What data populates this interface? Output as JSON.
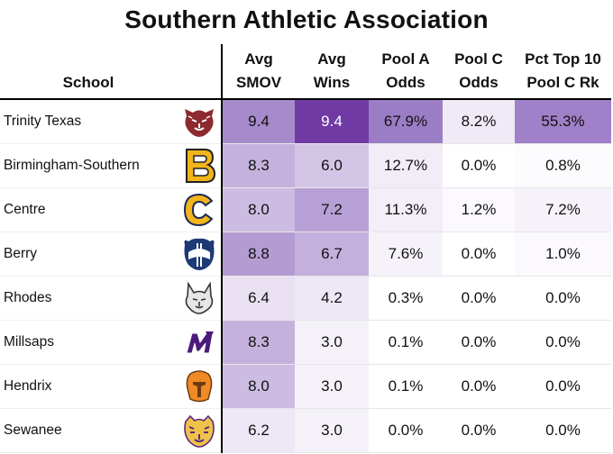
{
  "title": "Southern Athletic Association",
  "headers": {
    "school": "School",
    "smov": [
      "Avg",
      "SMOV"
    ],
    "wins": [
      "Avg",
      "Wins"
    ],
    "poola": [
      "Pool A",
      "Odds"
    ],
    "poolc": [
      "Pool C",
      "Odds"
    ],
    "pct": [
      "Pct Top 10",
      "Pool C Rk"
    ]
  },
  "rows": [
    {
      "school": "Trinity Texas",
      "logo": "tiger-head-logo",
      "smov": "9.4",
      "wins": "9.4",
      "poola": "67.9%",
      "poolc": "8.2%",
      "pct": "55.3%"
    },
    {
      "school": "Birmingham-Southern",
      "logo": "letter-b-logo",
      "smov": "8.3",
      "wins": "6.0",
      "poola": "12.7%",
      "poolc": "0.0%",
      "pct": "0.8%"
    },
    {
      "school": "Centre",
      "logo": "letter-c-logo",
      "smov": "8.0",
      "wins": "7.2",
      "poola": "11.3%",
      "poolc": "1.2%",
      "pct": "7.2%"
    },
    {
      "school": "Berry",
      "logo": "viking-helmet-logo",
      "smov": "8.8",
      "wins": "6.7",
      "poola": "7.6%",
      "poolc": "0.0%",
      "pct": "1.0%"
    },
    {
      "school": "Rhodes",
      "logo": "lynx-head-logo",
      "smov": "6.4",
      "wins": "4.2",
      "poola": "0.3%",
      "poolc": "0.0%",
      "pct": "0.0%"
    },
    {
      "school": "Millsaps",
      "logo": "letter-m-logo",
      "smov": "8.3",
      "wins": "3.0",
      "poola": "0.1%",
      "poolc": "0.0%",
      "pct": "0.0%"
    },
    {
      "school": "Hendrix",
      "logo": "warrior-helmet-logo",
      "smov": "8.0",
      "wins": "3.0",
      "poola": "0.1%",
      "poolc": "0.0%",
      "pct": "0.0%"
    },
    {
      "school": "Sewanee",
      "logo": "tiger-face-logo",
      "smov": "6.2",
      "wins": "3.0",
      "poola": "0.0%",
      "poolc": "0.0%",
      "pct": "0.0%"
    }
  ],
  "cell_colors": [
    {
      "smov": "#a68acb",
      "wins": "#6f3aa3",
      "poola": "#9b7dc6",
      "poolc": "#f0eaf6",
      "pct": "#a080c8"
    },
    {
      "smov": "#c4b2dd",
      "wins": "#d3c5e6",
      "poola": "#f2ecf7",
      "poolc": "#ffffff",
      "pct": "#fcfbfd"
    },
    {
      "smov": "#ccbce2",
      "wins": "#b7a0d5",
      "poola": "#f3eef8",
      "poolc": "#fbf9fd",
      "pct": "#f6f2fa"
    },
    {
      "smov": "#b49cd3",
      "wins": "#c3b0dc",
      "poola": "#f6f2fa",
      "poolc": "#ffffff",
      "pct": "#fbf9fd"
    },
    {
      "smov": "#e9e1f2",
      "wins": "#eee7f5",
      "poola": "#ffffff",
      "poolc": "#ffffff",
      "pct": "#ffffff"
    },
    {
      "smov": "#c4b2dd",
      "wins": "#f5f1f9",
      "poola": "#ffffff",
      "poolc": "#ffffff",
      "pct": "#ffffff"
    },
    {
      "smov": "#ccbce2",
      "wins": "#f5f1f9",
      "poola": "#ffffff",
      "poolc": "#ffffff",
      "pct": "#ffffff"
    },
    {
      "smov": "#eee7f5",
      "wins": "#f5f1f9",
      "poola": "#ffffff",
      "poolc": "#ffffff",
      "pct": "#ffffff"
    }
  ]
}
